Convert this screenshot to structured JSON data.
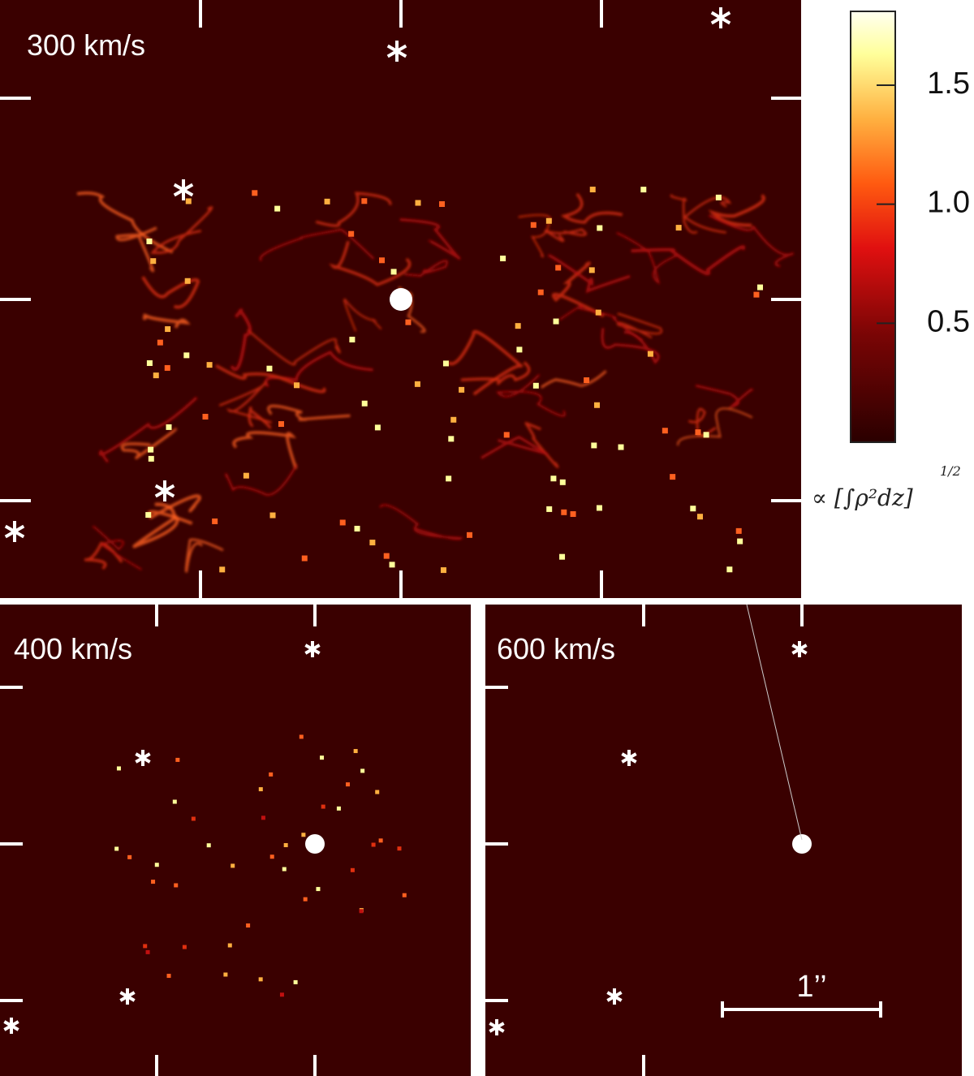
{
  "panels": [
    {
      "label": "300 km/s"
    },
    {
      "label": "400 km/s"
    },
    {
      "label": "600 km/s"
    }
  ],
  "colorbar": {
    "lim": [
      0,
      1.81
    ],
    "ticks": [
      0.5,
      {
        "value": 1.0,
        "label": "1.0"
      },
      1.5
    ],
    "label": "∝ [∫ρ²dz]",
    "exponent": "1/2"
  },
  "scale_bar": {
    "label": "1’’"
  }
}
